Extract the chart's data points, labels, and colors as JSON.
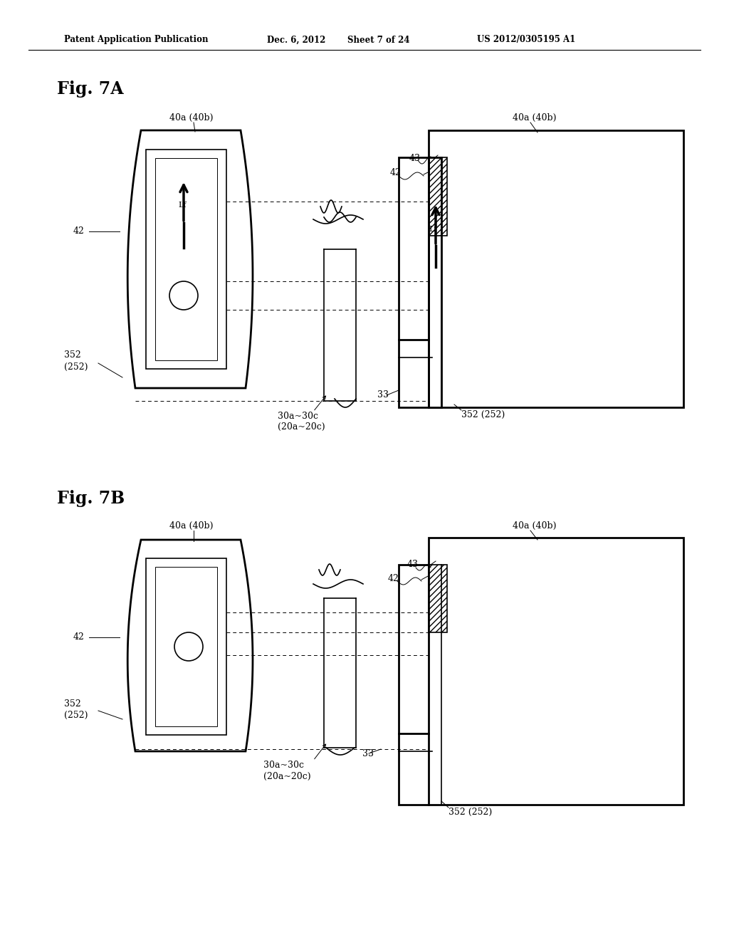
{
  "bg_color": "#ffffff",
  "header_text": "Patent Application Publication",
  "header_date": "Dec. 6, 2012",
  "header_sheet": "Sheet 7 of 24",
  "header_patent": "US 2012/0305195 A1",
  "fig7a_label": "Fig. 7A",
  "fig7b_label": "Fig. 7B",
  "black": "#000000"
}
